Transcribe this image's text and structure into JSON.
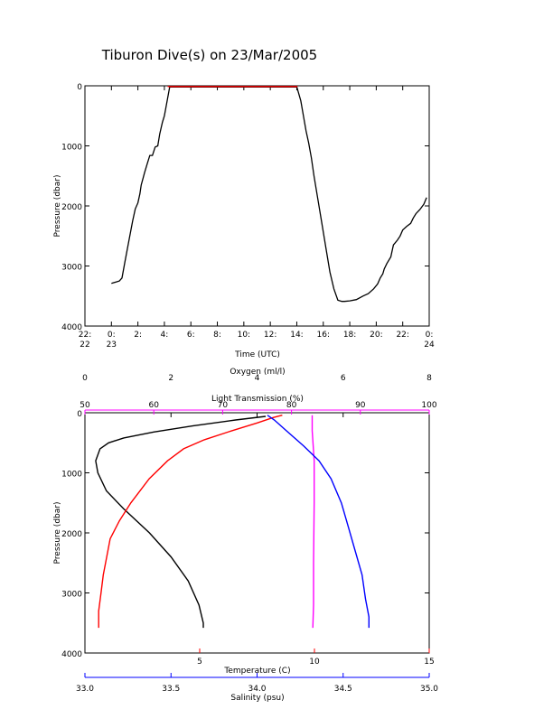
{
  "page": {
    "title": "Tiburon Dive(s) on 23/Mar/2005"
  },
  "chart_data": [
    {
      "type": "line",
      "title": "Tiburon Dive(s) on 23/Mar/2005",
      "xlabel": "Time (UTC)",
      "ylabel": "Pressure (dbar)",
      "xlim": [
        22,
        48
      ],
      "ylim": [
        4000,
        0
      ],
      "x_ticks": [
        {
          "v": 22,
          "line1": "22:",
          "line2": "22"
        },
        {
          "v": 24,
          "line1": "0:",
          "line2": "23"
        },
        {
          "v": 26,
          "line1": "2:",
          "line2": ""
        },
        {
          "v": 28,
          "line1": "4:",
          "line2": ""
        },
        {
          "v": 30,
          "line1": "6:",
          "line2": ""
        },
        {
          "v": 32,
          "line1": "8:",
          "line2": ""
        },
        {
          "v": 34,
          "line1": "10:",
          "line2": ""
        },
        {
          "v": 36,
          "line1": "12:",
          "line2": ""
        },
        {
          "v": 38,
          "line1": "14:",
          "line2": ""
        },
        {
          "v": 40,
          "line1": "16:",
          "line2": ""
        },
        {
          "v": 42,
          "line1": "18:",
          "line2": ""
        },
        {
          "v": 44,
          "line1": "20:",
          "line2": ""
        },
        {
          "v": 46,
          "line1": "22:",
          "line2": ""
        },
        {
          "v": 48,
          "line1": "0:",
          "line2": "24"
        }
      ],
      "y_ticks": [
        "0",
        "1000",
        "2000",
        "3000",
        "4000"
      ],
      "series": [
        {
          "color": "#000000",
          "x": [
            24.0,
            24.6,
            24.8,
            25.0,
            25.3,
            25.6,
            25.8,
            26.0,
            26.15,
            26.25,
            26.4,
            26.5,
            26.7,
            26.9,
            27.1,
            27.3,
            27.5,
            27.65,
            27.75,
            27.85,
            28.0,
            28.1,
            28.4,
            38.0,
            38.3,
            38.5,
            38.7,
            38.9,
            39.1,
            39.3,
            39.6,
            39.9,
            40.2,
            40.5,
            40.8,
            41.1,
            41.4,
            41.6,
            42.0,
            42.5,
            43.0,
            43.4,
            43.8,
            44.1,
            44.3,
            44.5,
            44.6,
            44.8,
            45.1,
            45.3,
            45.6,
            45.8,
            46.0,
            46.3,
            46.6,
            46.8,
            47.0,
            47.3,
            47.6,
            47.8
          ],
          "y": [
            3290,
            3250,
            3200,
            2950,
            2600,
            2250,
            2050,
            1950,
            1800,
            1650,
            1530,
            1450,
            1300,
            1160,
            1160,
            1020,
            1000,
            800,
            700,
            610,
            500,
            380,
            20,
            20,
            250,
            500,
            750,
            950,
            1200,
            1500,
            1900,
            2300,
            2700,
            3100,
            3380,
            3570,
            3590,
            3590,
            3580,
            3560,
            3500,
            3460,
            3380,
            3300,
            3200,
            3130,
            3050,
            2960,
            2850,
            2650,
            2570,
            2500,
            2400,
            2340,
            2290,
            2200,
            2130,
            2060,
            1970,
            1860
          ]
        },
        {
          "color": "#ff0000",
          "x": [
            28.25,
            38.05
          ],
          "y": [
            12,
            12
          ]
        }
      ]
    },
    {
      "type": "line",
      "ylabel": "Pressure (dbar)",
      "ylim": [
        4000,
        0
      ],
      "y_ticks": [
        "0",
        "1000",
        "2000",
        "3000",
        "4000"
      ],
      "axes": {
        "oxygen": {
          "label": "Oxygen (ml/l)",
          "range": [
            0,
            8
          ],
          "ticks": [
            0,
            2,
            4,
            6,
            8
          ],
          "color": "#000000"
        },
        "light": {
          "label": "Light Transmission (%)",
          "range": [
            50,
            100
          ],
          "ticks": [
            50,
            60,
            70,
            80,
            90,
            100
          ],
          "color": "#ff00ff"
        },
        "temperature": {
          "label": "Temperature (C)",
          "range": [
            0,
            15
          ],
          "ticks": [
            5,
            10,
            15
          ],
          "color": "#ff0000"
        },
        "salinity": {
          "label": "Salinity (psu)",
          "range": [
            33.0,
            35.0
          ],
          "ticks": [
            "33.0",
            "33.5",
            "34.0",
            "34.5",
            "35.0"
          ],
          "color": "#0000ff"
        }
      },
      "series": [
        {
          "axis": "oxygen",
          "color": "#000000",
          "x": [
            4.2,
            3.5,
            2.5,
            1.6,
            0.9,
            0.55,
            0.35,
            0.25,
            0.3,
            0.5,
            0.9,
            1.5,
            2.0,
            2.4,
            2.65,
            2.75,
            2.75
          ],
          "y": [
            60,
            120,
            220,
            320,
            420,
            500,
            600,
            800,
            1000,
            1300,
            1600,
            2000,
            2400,
            2800,
            3200,
            3500,
            3580
          ]
        },
        {
          "axis": "light",
          "color": "#ff00ff",
          "x": [
            83.0,
            83.0,
            83.3,
            83.3,
            83.2,
            83.2,
            83.1
          ],
          "y": [
            40,
            300,
            800,
            1500,
            2500,
            3200,
            3580
          ]
        },
        {
          "axis": "temperature",
          "color": "#ff0000",
          "x": [
            8.6,
            8.2,
            7.5,
            6.4,
            5.2,
            4.3,
            3.6,
            2.8,
            2.0,
            1.5,
            1.1,
            0.95,
            0.8,
            0.7,
            0.6,
            0.6
          ],
          "y": [
            40,
            80,
            170,
            300,
            450,
            600,
            800,
            1100,
            1500,
            1800,
            2100,
            2400,
            2700,
            3000,
            3300,
            3580
          ]
        },
        {
          "axis": "salinity",
          "color": "#0000ff",
          "x": [
            34.06,
            34.1,
            34.17,
            34.27,
            34.36,
            34.43,
            34.49,
            34.53,
            34.57,
            34.61,
            34.63,
            34.65,
            34.65
          ],
          "y": [
            40,
            120,
            300,
            550,
            800,
            1100,
            1500,
            1900,
            2300,
            2700,
            3100,
            3400,
            3580
          ]
        }
      ]
    }
  ]
}
